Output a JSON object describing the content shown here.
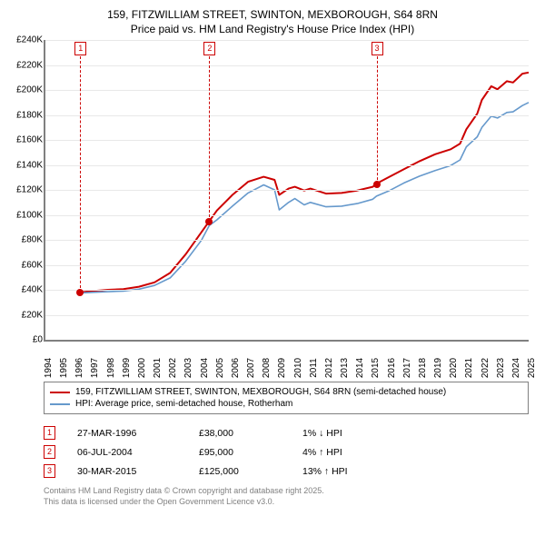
{
  "title": {
    "line1": "159, FITZWILLIAM STREET, SWINTON, MEXBOROUGH, S64 8RN",
    "line2": "Price paid vs. HM Land Registry's House Price Index (HPI)"
  },
  "chart": {
    "type": "line",
    "background_color": "#ffffff",
    "grid_color": "#e8e8e8",
    "axis_color": "#808080",
    "ylim": [
      0,
      240000
    ],
    "ytick_step": 20000,
    "ytick_labels": [
      "£0",
      "£20K",
      "£40K",
      "£60K",
      "£80K",
      "£100K",
      "£120K",
      "£140K",
      "£160K",
      "£180K",
      "£200K",
      "£220K",
      "£240K"
    ],
    "xlim": [
      1994,
      2025
    ],
    "xtick_labels": [
      "1994",
      "1995",
      "1996",
      "1997",
      "1998",
      "1999",
      "2000",
      "2001",
      "2002",
      "2003",
      "2004",
      "2005",
      "2006",
      "2007",
      "2008",
      "2009",
      "2010",
      "2011",
      "2012",
      "2013",
      "2014",
      "2015",
      "2016",
      "2017",
      "2018",
      "2019",
      "2020",
      "2021",
      "2022",
      "2023",
      "2024",
      "2025"
    ],
    "series": [
      {
        "name": "price_paid",
        "color": "#cc0000",
        "width": 2,
        "points": [
          [
            1996.23,
            38000
          ],
          [
            1997,
            39000
          ],
          [
            1998,
            40000
          ],
          [
            1999,
            40500
          ],
          [
            2000,
            42500
          ],
          [
            2001,
            46000
          ],
          [
            2002,
            53500
          ],
          [
            2003,
            68500
          ],
          [
            2004,
            86000
          ],
          [
            2004.51,
            95000
          ],
          [
            2005,
            103500
          ],
          [
            2006,
            116000
          ],
          [
            2007,
            126500
          ],
          [
            2008,
            130500
          ],
          [
            2008.7,
            128000
          ],
          [
            2009,
            116000
          ],
          [
            2009.6,
            121000
          ],
          [
            2010,
            122500
          ],
          [
            2010.6,
            119500
          ],
          [
            2011,
            121000
          ],
          [
            2012,
            117000
          ],
          [
            2013,
            117500
          ],
          [
            2014,
            119500
          ],
          [
            2015,
            122500
          ],
          [
            2015.24,
            125000
          ],
          [
            2016,
            130000
          ],
          [
            2017,
            136500
          ],
          [
            2018,
            143000
          ],
          [
            2019,
            148500
          ],
          [
            2020,
            152500
          ],
          [
            2020.6,
            157000
          ],
          [
            2021,
            168500
          ],
          [
            2021.7,
            181000
          ],
          [
            2022,
            192000
          ],
          [
            2022.6,
            203000
          ],
          [
            2023,
            200500
          ],
          [
            2023.6,
            207000
          ],
          [
            2024,
            206000
          ],
          [
            2024.6,
            213000
          ],
          [
            2025,
            214000
          ]
        ]
      },
      {
        "name": "hpi",
        "color": "#6699cc",
        "width": 1.6,
        "points": [
          [
            1996.23,
            37500
          ],
          [
            1997,
            38000
          ],
          [
            1998,
            38500
          ],
          [
            1999,
            39000
          ],
          [
            2000,
            40500
          ],
          [
            2001,
            43500
          ],
          [
            2002,
            49500
          ],
          [
            2003,
            63000
          ],
          [
            2004,
            79500
          ],
          [
            2004.51,
            91500
          ],
          [
            2005,
            96000
          ],
          [
            2006,
            107000
          ],
          [
            2007,
            117500
          ],
          [
            2008,
            124000
          ],
          [
            2008.7,
            120000
          ],
          [
            2009,
            104000
          ],
          [
            2009.6,
            110000
          ],
          [
            2010,
            113000
          ],
          [
            2010.6,
            108000
          ],
          [
            2011,
            110000
          ],
          [
            2012,
            106500
          ],
          [
            2013,
            107000
          ],
          [
            2014,
            109000
          ],
          [
            2015,
            112500
          ],
          [
            2015.24,
            115000
          ],
          [
            2016,
            119000
          ],
          [
            2017,
            125500
          ],
          [
            2018,
            131000
          ],
          [
            2019,
            135500
          ],
          [
            2020,
            139500
          ],
          [
            2020.6,
            144000
          ],
          [
            2021,
            154500
          ],
          [
            2021.7,
            162500
          ],
          [
            2022,
            170000
          ],
          [
            2022.6,
            179000
          ],
          [
            2023,
            177500
          ],
          [
            2023.6,
            182000
          ],
          [
            2024,
            182500
          ],
          [
            2024.6,
            187500
          ],
          [
            2025,
            190000
          ]
        ]
      }
    ],
    "markers": [
      {
        "n": "1",
        "x": 1996.23,
        "y": 38000
      },
      {
        "n": "2",
        "x": 2004.51,
        "y": 95000
      },
      {
        "n": "3",
        "x": 2015.24,
        "y": 125000
      }
    ]
  },
  "legend": {
    "items": [
      {
        "color": "#cc0000",
        "label": "159, FITZWILLIAM STREET, SWINTON, MEXBOROUGH, S64 8RN (semi-detached house)"
      },
      {
        "color": "#6699cc",
        "label": "HPI: Average price, semi-detached house, Rotherham"
      }
    ]
  },
  "sales": [
    {
      "n": "1",
      "date": "27-MAR-1996",
      "price": "£38,000",
      "change": "1% ↓ HPI"
    },
    {
      "n": "2",
      "date": "06-JUL-2004",
      "price": "£95,000",
      "change": "4% ↑ HPI"
    },
    {
      "n": "3",
      "date": "30-MAR-2015",
      "price": "£125,000",
      "change": "13% ↑ HPI"
    }
  ],
  "footer": {
    "line1": "Contains HM Land Registry data © Crown copyright and database right 2025.",
    "line2": "This data is licensed under the Open Government Licence v3.0."
  }
}
